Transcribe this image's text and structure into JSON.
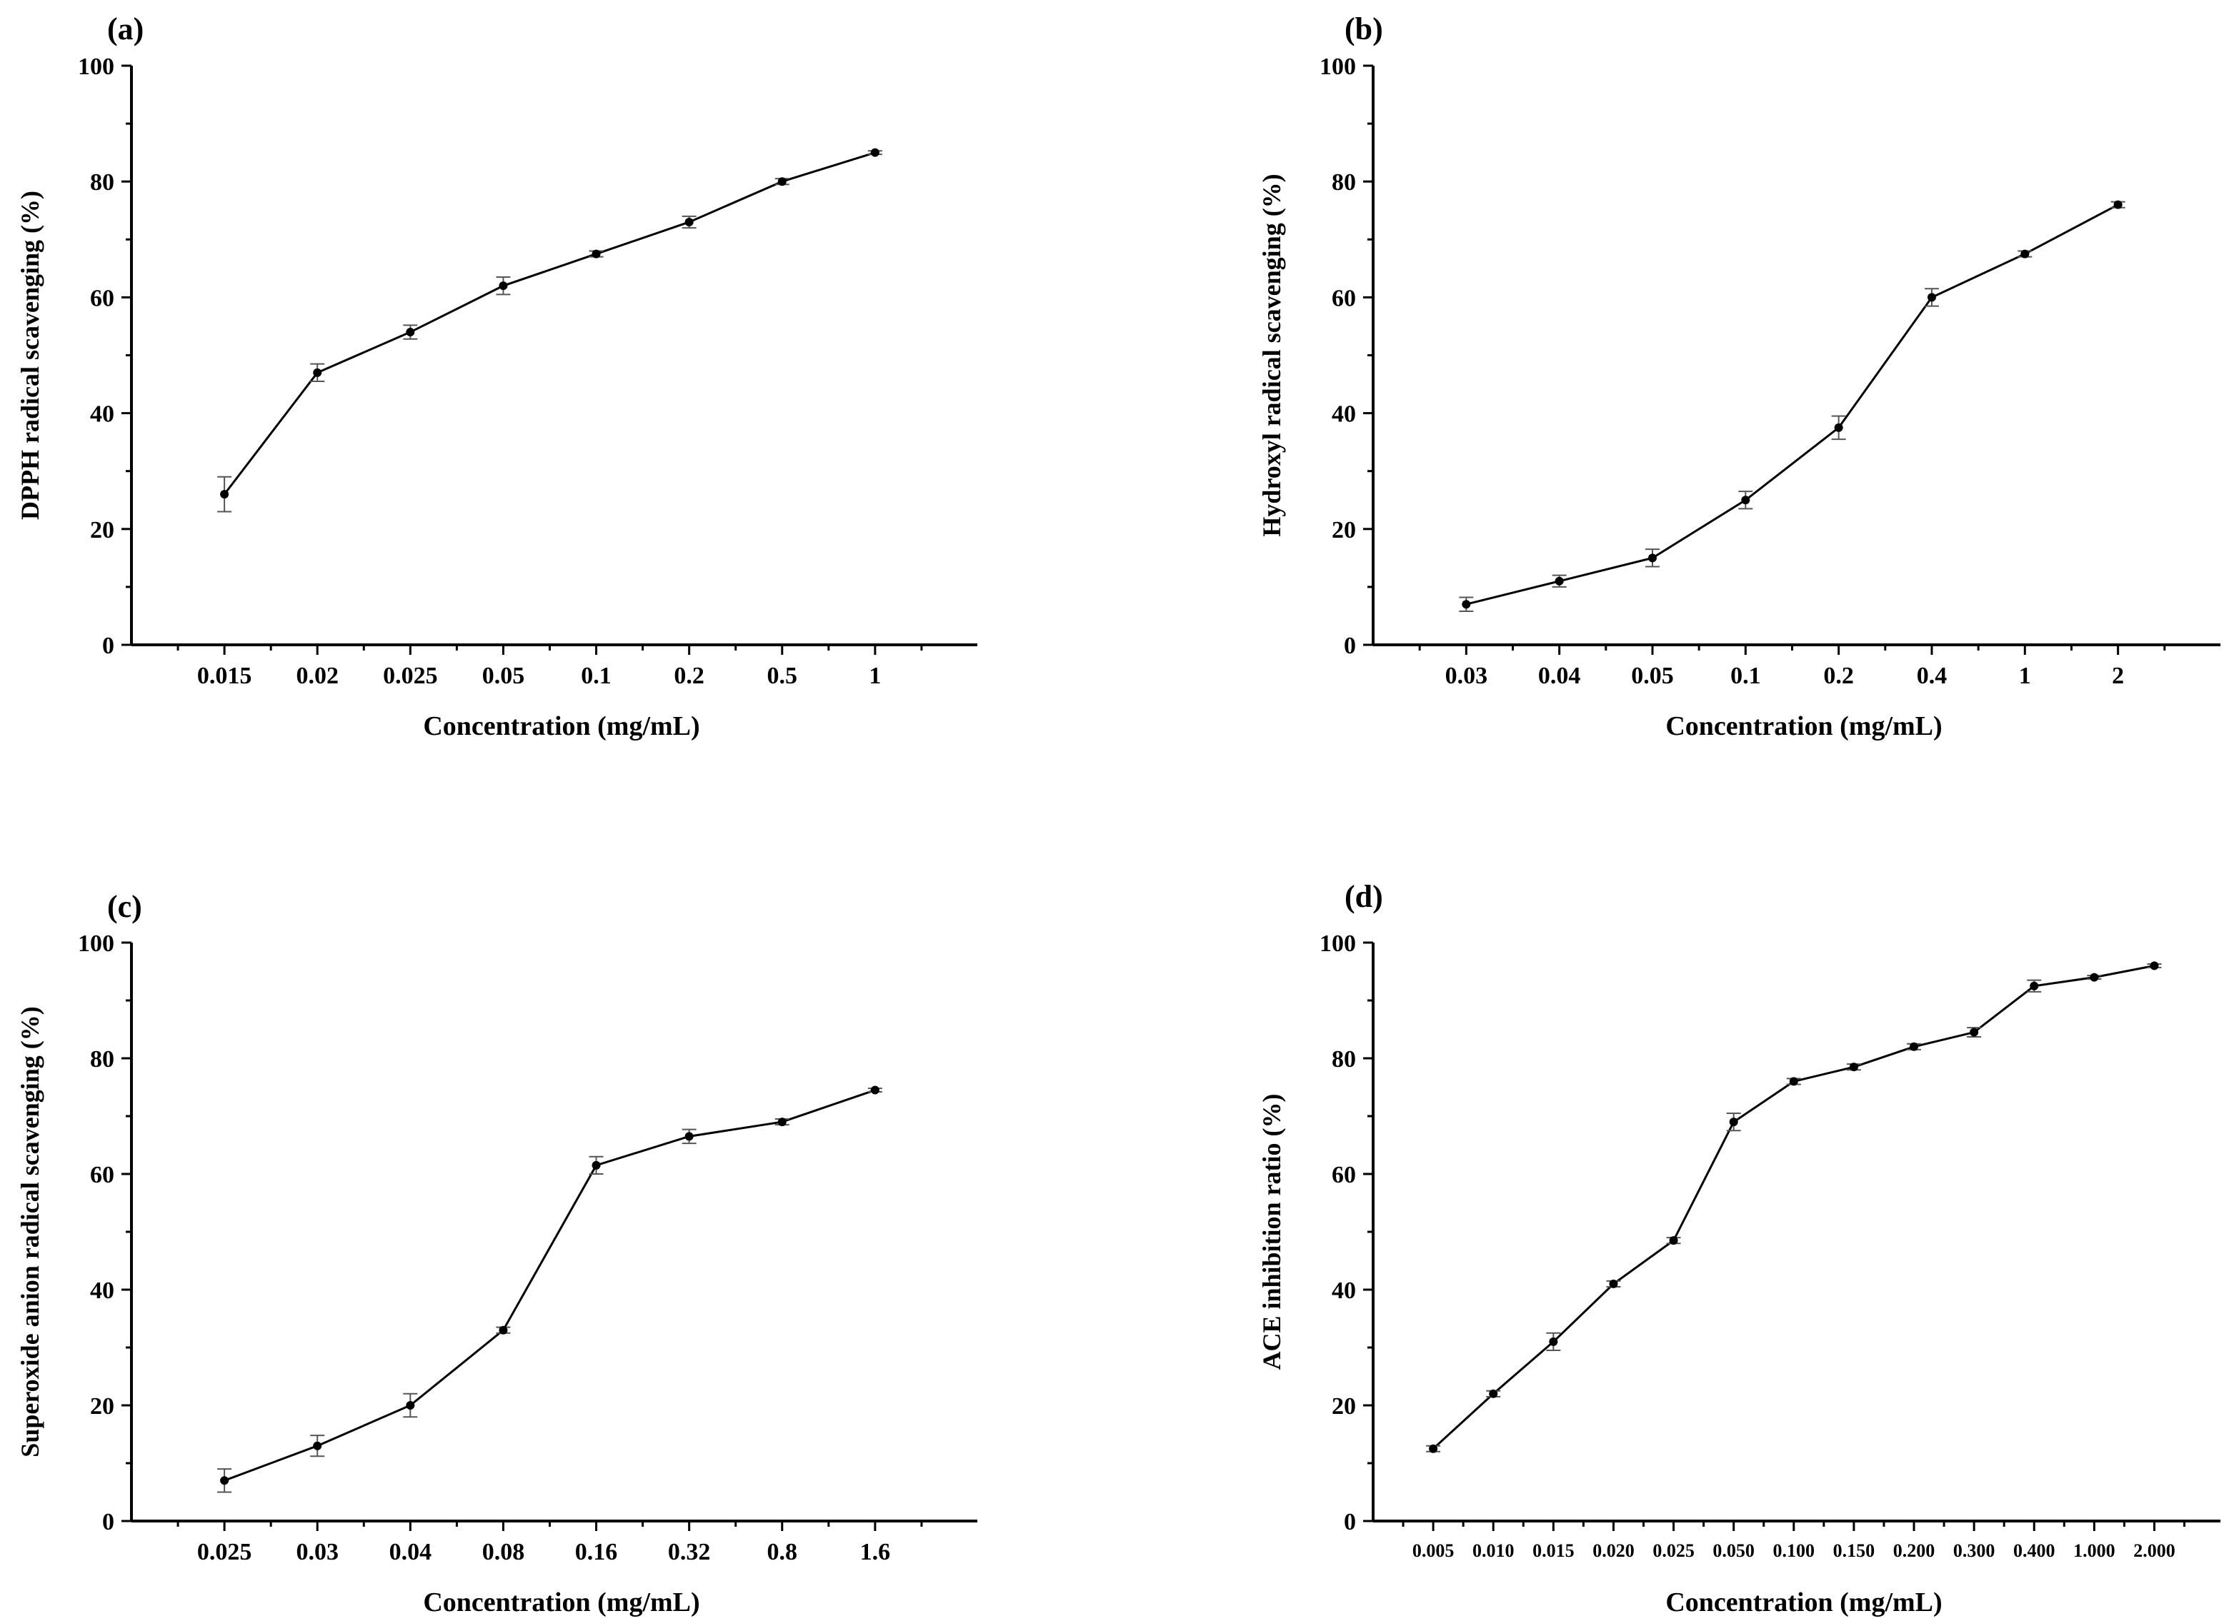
{
  "chart_data": [
    {
      "panel_label": "(a)",
      "type": "line",
      "xlabel": "Concentration (mg/mL)",
      "ylabel": "DPPH radical scavenging (%)",
      "ylim": [
        0,
        100
      ],
      "yticks": [
        "0",
        "20",
        "40",
        "60",
        "80",
        "100"
      ],
      "categories": [
        "0.015",
        "0.02",
        "0.025",
        "0.05",
        "0.1",
        "0.2",
        "0.5",
        "1"
      ],
      "values": [
        26,
        47,
        54,
        62,
        67.5,
        73,
        80,
        85
      ],
      "errors": [
        3,
        1.5,
        1.2,
        1.5,
        0.5,
        1,
        0.5,
        0.3
      ]
    },
    {
      "panel_label": "(b)",
      "type": "line",
      "xlabel": "Concentration (mg/mL)",
      "ylabel": "Hydroxyl radical scavenging (%)",
      "ylim": [
        0,
        100
      ],
      "yticks": [
        "0",
        "20",
        "40",
        "60",
        "80",
        "100"
      ],
      "categories": [
        "0.03",
        "0.04",
        "0.05",
        "0.1",
        "0.2",
        "0.4",
        "1",
        "2"
      ],
      "values": [
        7,
        11,
        15,
        25,
        37.5,
        60,
        67.5,
        76
      ],
      "errors": [
        1.2,
        1,
        1.5,
        1.5,
        2,
        1.5,
        0.5,
        0.5
      ]
    },
    {
      "panel_label": "(c)",
      "type": "line",
      "xlabel": "Concentration (mg/mL)",
      "ylabel": "Superoxide anion radical scavenging (%)",
      "ylim": [
        0,
        100
      ],
      "yticks": [
        "0",
        "20",
        "40",
        "60",
        "80",
        "100"
      ],
      "categories": [
        "0.025",
        "0.03",
        "0.04",
        "0.08",
        "0.16",
        "0.32",
        "0.8",
        "1.6"
      ],
      "values": [
        7,
        13,
        20,
        33,
        61.5,
        66.5,
        69,
        74.5
      ],
      "errors": [
        2,
        1.8,
        2,
        0.5,
        1.5,
        1.2,
        0.5,
        0.3
      ]
    },
    {
      "panel_label": "(d)",
      "type": "line",
      "xlabel": "Concentration (mg/mL)",
      "ylabel": "ACE inhibition ratio (%)",
      "ylim": [
        0,
        100
      ],
      "yticks": [
        "0",
        "20",
        "40",
        "60",
        "80",
        "100"
      ],
      "categories": [
        "0.005",
        "0.010",
        "0.015",
        "0.020",
        "0.025",
        "0.050",
        "0.100",
        "0.150",
        "0.200",
        "0.300",
        "0.400",
        "1.000",
        "2.000"
      ],
      "values": [
        12.5,
        22,
        31,
        41,
        48.5,
        69,
        76,
        78.5,
        82,
        84.5,
        92.5,
        94,
        96
      ],
      "errors": [
        0.5,
        0.5,
        1.5,
        0.5,
        0.5,
        1.5,
        0.5,
        0.5,
        0.5,
        0.8,
        1,
        0.3,
        0.3
      ]
    }
  ]
}
